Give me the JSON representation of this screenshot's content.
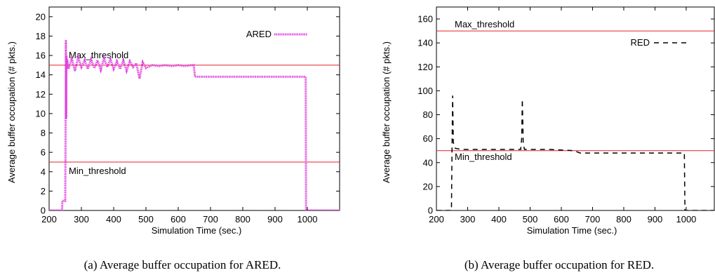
{
  "chart_data": [
    {
      "type": "line",
      "xlabel": "Simulation Time (sec.)",
      "ylabel": "Average buffer occupation (# pkts.)",
      "xlim": [
        200,
        1100
      ],
      "ylim": [
        0,
        21
      ],
      "xticks": [
        "200",
        "300",
        "400",
        "500",
        "600",
        "700",
        "800",
        "900",
        "1000"
      ],
      "yticks": [
        "0",
        "2",
        "4",
        "6",
        "8",
        "10",
        "12",
        "14",
        "16",
        "18",
        "20"
      ],
      "caption": "(a) Average buffer occupation for ARED.",
      "thresholds": [
        {
          "label": "Max_threshold",
          "value": 15,
          "color": "#e8202a"
        },
        {
          "label": "Min_threshold",
          "value": 5,
          "color": "#e8202a"
        }
      ],
      "series": [
        {
          "name": "ARED",
          "color": "#e040e0",
          "style": "thick",
          "x": [
            200,
            240,
            241,
            250,
            251,
            252,
            253,
            254,
            255,
            256,
            260,
            270,
            280,
            290,
            300,
            310,
            320,
            330,
            340,
            350,
            360,
            370,
            380,
            390,
            400,
            410,
            420,
            430,
            440,
            450,
            460,
            470,
            480,
            490,
            500,
            520,
            540,
            560,
            580,
            600,
            620,
            640,
            648,
            652,
            700,
            800,
            900,
            995,
            996,
            1000,
            1100
          ],
          "y": [
            0,
            0,
            1,
            1,
            8.7,
            17.6,
            9.5,
            16,
            14.6,
            15.6,
            14.6,
            15.7,
            14.4,
            15.8,
            14.8,
            15.5,
            14.6,
            15.6,
            14.7,
            15.5,
            14.5,
            15.7,
            14.8,
            15.6,
            14.6,
            15.4,
            14.6,
            15.5,
            14.4,
            15.4,
            14.8,
            15.2,
            13.6,
            15.3,
            14.7,
            15,
            14.9,
            15,
            14.9,
            15,
            14.9,
            15,
            15,
            13.8,
            13.8,
            13.8,
            13.8,
            13.8,
            0,
            0,
            0
          ]
        }
      ]
    },
    {
      "type": "line",
      "xlabel": "Simulation Time (sec.)",
      "ylabel": "Average buffer occupation (# pkts.)",
      "xlim": [
        200,
        1090
      ],
      "ylim": [
        0,
        170
      ],
      "xticks": [
        "200",
        "300",
        "400",
        "500",
        "600",
        "700",
        "800",
        "900",
        "1000"
      ],
      "yticks": [
        "0",
        "20",
        "40",
        "60",
        "80",
        "100",
        "120",
        "140",
        "160"
      ],
      "caption": "(b) Average buffer occupation for RED.",
      "thresholds": [
        {
          "label": "Max_threshold",
          "value": 150,
          "color": "#e8202a"
        },
        {
          "label": "Min_threshold",
          "value": 50,
          "color": "#e8202a"
        }
      ],
      "series": [
        {
          "name": "RED",
          "color": "#000000",
          "style": "dashed",
          "x": [
            200,
            248,
            250,
            252,
            254,
            256,
            260,
            280,
            300,
            400,
            470,
            473,
            475,
            478,
            482,
            500,
            560,
            640,
            660,
            700,
            800,
            900,
            994,
            996,
            1000,
            1090
          ],
          "y": [
            0,
            0,
            50,
            96,
            58,
            54,
            52,
            51,
            51,
            51,
            51,
            60,
            93,
            56,
            51,
            51,
            51,
            50,
            48,
            48,
            48,
            48,
            48,
            0,
            0,
            0
          ]
        }
      ]
    }
  ]
}
